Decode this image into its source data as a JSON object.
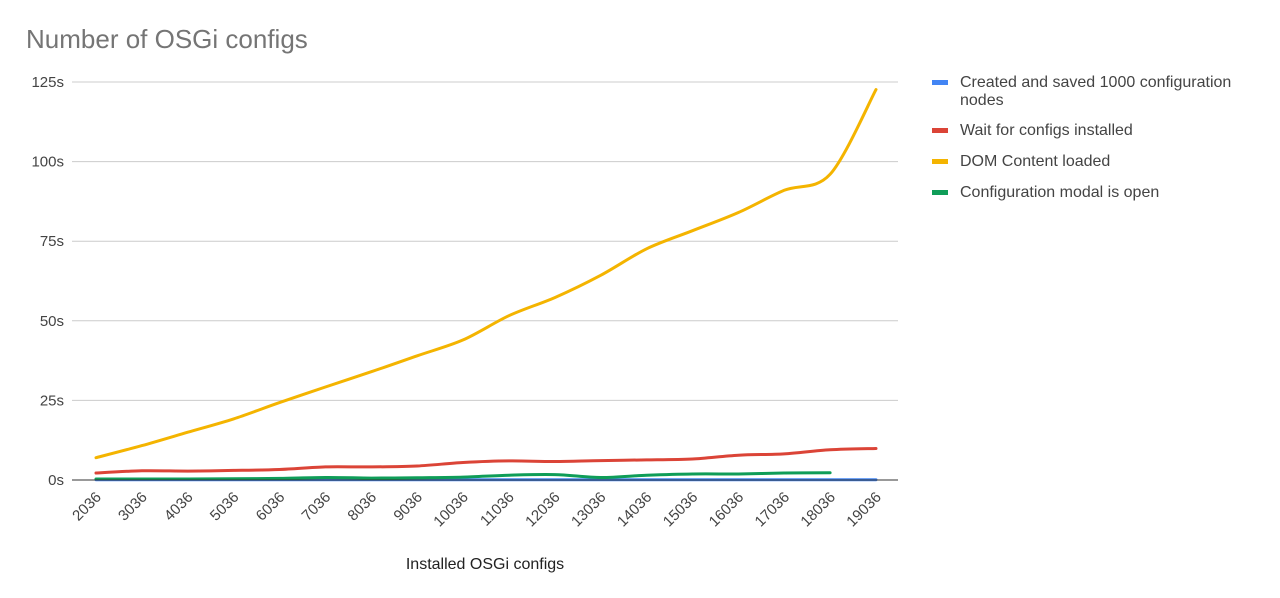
{
  "chart_data": {
    "type": "line",
    "title": "Number of OSGi configs",
    "xlabel": "Installed OSGi configs",
    "ylabel": "",
    "x": [
      "2036",
      "3036",
      "4036",
      "5036",
      "6036",
      "7036",
      "8036",
      "9036",
      "10036",
      "11036",
      "12036",
      "13036",
      "14036",
      "15036",
      "16036",
      "17036",
      "18036",
      "19036"
    ],
    "yticks": [
      "0s",
      "25s",
      "50s",
      "75s",
      "100s",
      "125s"
    ],
    "ylim": [
      0,
      125
    ],
    "grid": true,
    "legend_position": "right",
    "series": [
      {
        "name": "Created and saved 1000 configuration nodes",
        "legend_lines": [
          "Created and saved 1000 configuration",
          "nodes"
        ],
        "color": "#4285f4",
        "values": [
          0.1,
          0.1,
          0.1,
          0.1,
          0.1,
          0.1,
          0.1,
          0.1,
          0.1,
          0.1,
          0.1,
          0.1,
          0.1,
          0.1,
          0.1,
          0.1,
          0.1,
          0.1
        ]
      },
      {
        "name": "Wait for configs installed",
        "legend_lines": [
          "Wait for configs installed"
        ],
        "color": "#db4437",
        "values": [
          2.2,
          2.9,
          2.8,
          3.0,
          3.3,
          4.1,
          4.1,
          4.4,
          5.5,
          6.0,
          5.8,
          6.1,
          6.3,
          6.6,
          7.8,
          8.2,
          9.5,
          9.9
        ]
      },
      {
        "name": "DOM Content loaded",
        "legend_lines": [
          "DOM Content loaded"
        ],
        "color": "#f4b400",
        "values": [
          7.0,
          10.8,
          15.0,
          19.2,
          24.3,
          29.2,
          34.0,
          39.0,
          44.0,
          51.6,
          57.3,
          64.3,
          72.6,
          78.3,
          84.0,
          91.0,
          96.0,
          122.6
        ]
      },
      {
        "name": "Configuration modal is open",
        "legend_lines": [
          "Configuration modal is open"
        ],
        "color": "#0f9d58",
        "values": [
          0.3,
          0.3,
          0.3,
          0.4,
          0.5,
          0.8,
          0.6,
          0.7,
          0.9,
          1.5,
          1.7,
          0.8,
          1.5,
          1.9,
          1.9,
          2.2,
          2.3,
          null
        ]
      }
    ]
  }
}
